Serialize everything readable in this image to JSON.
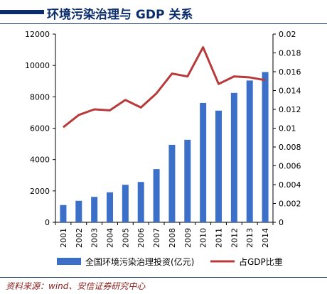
{
  "header": {
    "title": "环境污染治理与 GDP 关系"
  },
  "source": "资料来源：wind、安信证券研究中心",
  "chart_data": {
    "type": "bar+line",
    "categories": [
      "2001",
      "2002",
      "2003",
      "2004",
      "2005",
      "2006",
      "2007",
      "2008",
      "2009",
      "2010",
      "2011",
      "2012",
      "2013",
      "2014"
    ],
    "series": [
      {
        "name": "全国环境污染治理投资(亿元)",
        "type": "bar",
        "axis": "left",
        "color": "#3c6fc8",
        "values": [
          1100,
          1370,
          1620,
          1910,
          2390,
          2570,
          3390,
          4940,
          5260,
          7610,
          7120,
          8250,
          9040,
          9580
        ]
      },
      {
        "name": "占GDP比重",
        "type": "line",
        "axis": "right",
        "color": "#b83a3a",
        "values": [
          0.0101,
          0.0114,
          0.012,
          0.0119,
          0.013,
          0.0122,
          0.0137,
          0.0158,
          0.0155,
          0.0186,
          0.0147,
          0.0155,
          0.0154,
          0.0151
        ]
      }
    ],
    "ylim_left": [
      0,
      12000
    ],
    "yticks_left": [
      "0",
      "2000",
      "4000",
      "6000",
      "8000",
      "10000",
      "12000"
    ],
    "ylim_right": [
      0,
      0.02
    ],
    "yticks_right": [
      "0",
      "0.002",
      "0.004",
      "0.006",
      "0.008",
      "0.01",
      "0.012",
      "0.014",
      "0.016",
      "0.018",
      "0.02"
    ],
    "legend_position": "bottom",
    "grid": false
  }
}
